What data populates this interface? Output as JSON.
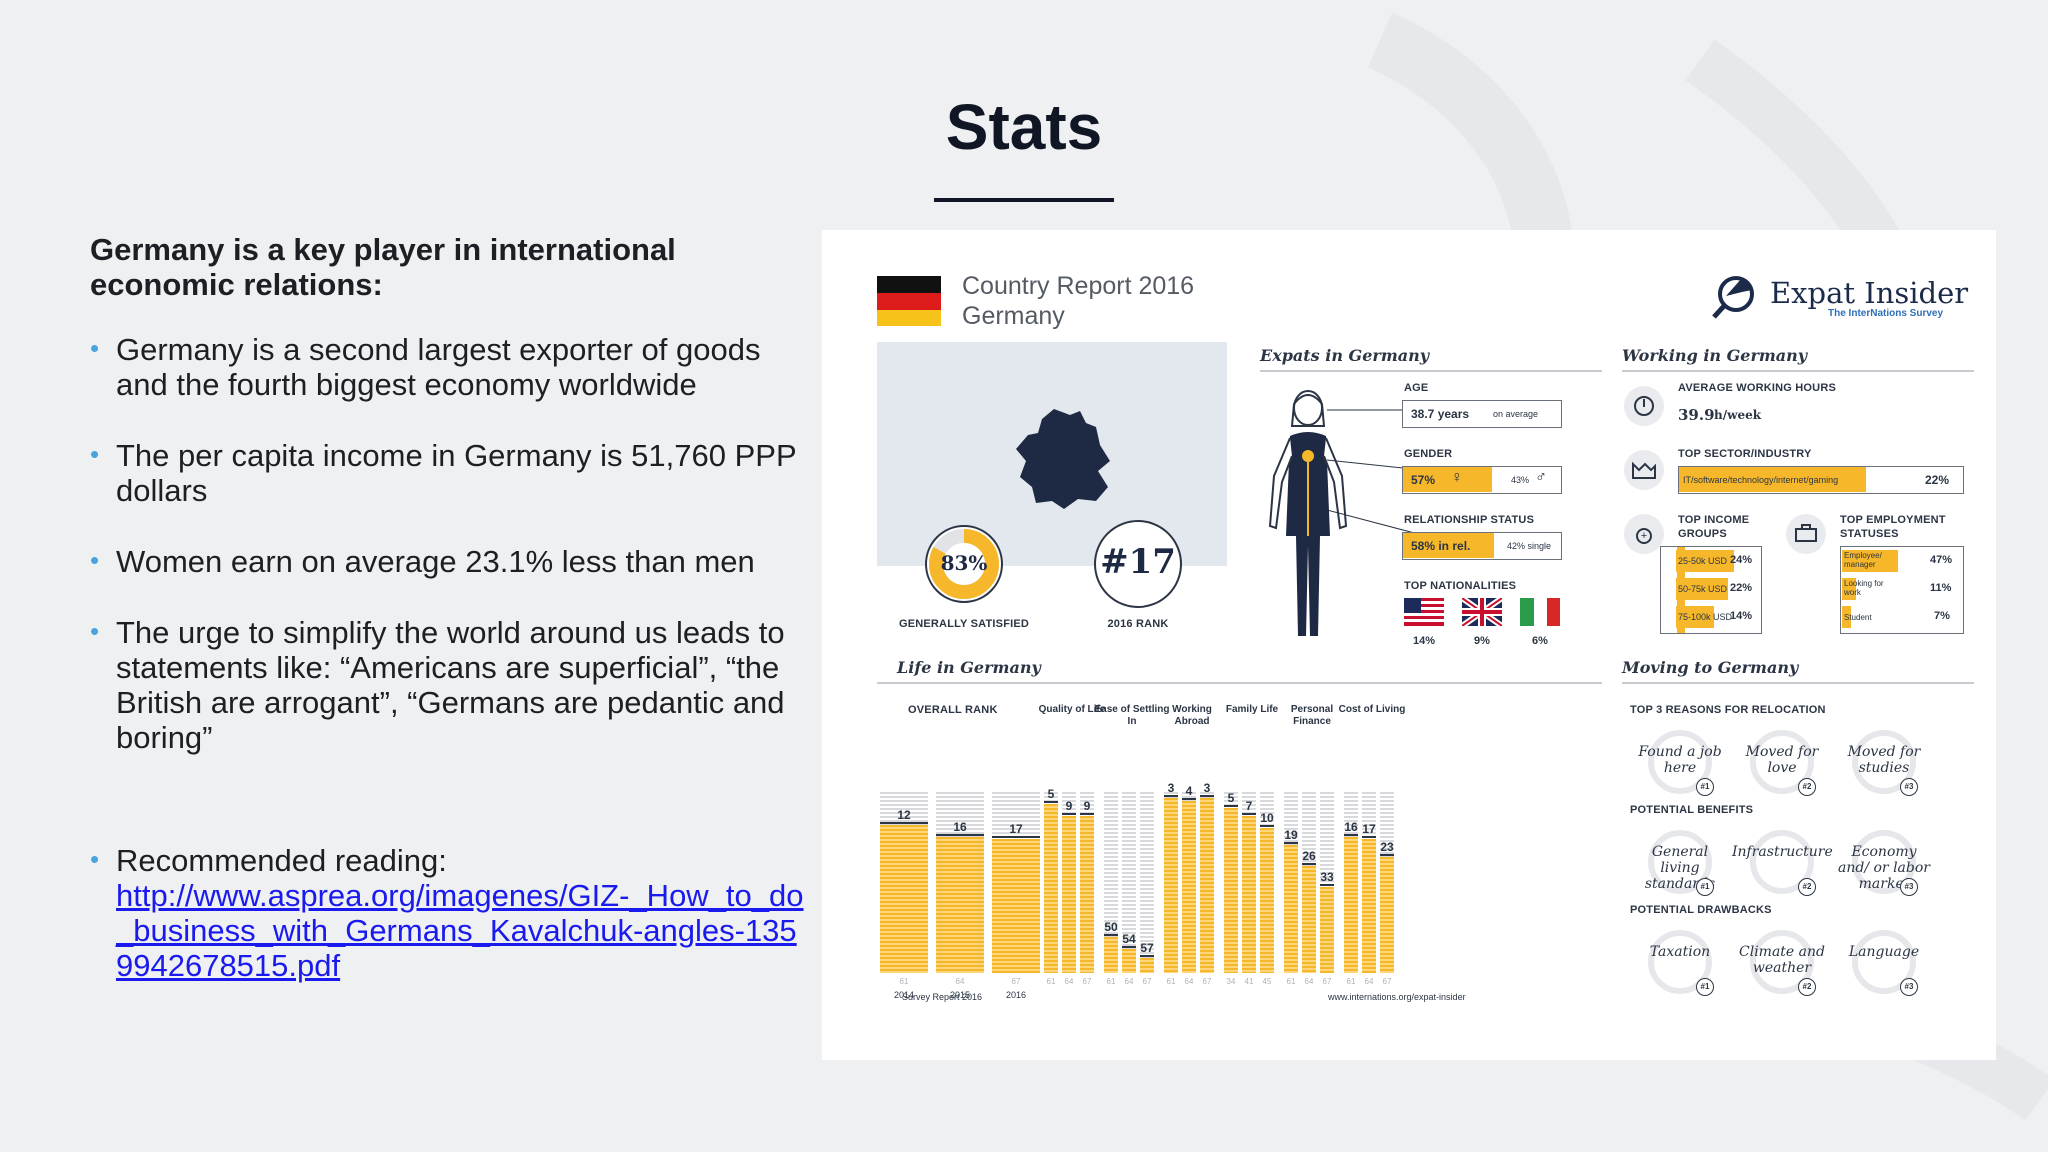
{
  "slide": {
    "title": "Stats",
    "lead": "Germany is a key player in international economic relations:",
    "bullets": [
      "Germany is a second largest exporter of goods and the fourth biggest economy worldwide",
      "The per capita income in Germany is 51,760 PPP dollars",
      "Women earn on average 23.1% less than men",
      "The urge to simplify the world around us leads to statements like: “Americans are superficial”, “the British are arrogant”, “Germans are pedantic and boring”"
    ],
    "recommended_label": "Recommended reading:",
    "recommended_link": "http://www.asprea.org/imagenes/GIZ-_How_to_do_business_with_Germans_Kavalchuk-angles-1359942678515.pdf"
  },
  "infographic": {
    "report_line1": "Country Report 2016",
    "report_line2": "Germany",
    "brand": "Expat Insider",
    "brand_sub": "The InterNations Survey",
    "satisfied_value": "83%",
    "satisfied_fraction": 0.83,
    "satisfied_label": "GENERALLY SATISFIED",
    "rank_value": "#17",
    "rank_label": "2016 RANK",
    "expats": {
      "title": "Expats in Germany",
      "age_label": "AGE",
      "age_value": "38.7 years",
      "age_suffix": "on average",
      "gender_label": "GENDER",
      "female_pct": "57%",
      "male_pct": "43%",
      "female_fraction": 0.57,
      "rel_label": "RELATIONSHIP STATUS",
      "rel_value": "58% in rel.",
      "single_value": "42% single",
      "rel_fraction": 0.58,
      "nat_label": "TOP NATIONALITIES",
      "nat_pcts": [
        "14%",
        "9%",
        "6%"
      ]
    },
    "working": {
      "title": "Working in Germany",
      "hours_label": "AVERAGE WORKING HOURS",
      "hours_value": "39.9",
      "hours_unit": "h/week",
      "sector_label": "TOP SECTOR/INDUSTRY",
      "sector_name": "IT/software/technology/internet/gaming",
      "sector_pct": "22%",
      "sector_fraction": 0.22,
      "income_label_1": "TOP INCOME",
      "income_label_2": "GROUPS",
      "income": [
        {
          "name": "25-50k USD",
          "pct": "24%"
        },
        {
          "name": "50-75k USD",
          "pct": "22%"
        },
        {
          "name": "75-100k USD",
          "pct": "14%"
        }
      ],
      "emp_label_1": "TOP EMPLOYMENT",
      "emp_label_2": "STATUSES",
      "employment": [
        {
          "name": "Employee/ manager",
          "pct": "47%"
        },
        {
          "name": "Looking for work",
          "pct": "11%"
        },
        {
          "name": "Student",
          "pct": "7%"
        }
      ]
    },
    "life": {
      "title": "Life in Germany",
      "overall_label": "OVERALL RANK",
      "years": [
        "2014",
        "2015",
        "2016"
      ],
      "overall_ranks": [
        "12",
        "16",
        "17"
      ],
      "overall_max": "61",
      "overall_max_labels": [
        "61",
        "64",
        "67"
      ],
      "categories": [
        {
          "name": "Quality of Life",
          "ranks": [
            "5",
            "9",
            "9"
          ]
        },
        {
          "name": "Ease of Settling In",
          "ranks": [
            "50",
            "54",
            "57"
          ]
        },
        {
          "name": "Working Abroad",
          "ranks": [
            "3",
            "4",
            "3"
          ]
        },
        {
          "name": "Family Life",
          "ranks": [
            "5",
            "7",
            "10"
          ]
        },
        {
          "name": "Personal Finance",
          "ranks": [
            "19",
            "26",
            "33"
          ]
        },
        {
          "name": "Cost of Living",
          "ranks": [
            "16",
            "17",
            "23"
          ]
        }
      ],
      "family_max_labels": [
        "34",
        "41",
        "45"
      ],
      "footer_left": "Survey Report 2016",
      "footer_right": "www.internations.org/expat-insider"
    },
    "moving": {
      "title": "Moving to Germany",
      "reasons_label": "TOP 3 REASONS FOR RELOCATION",
      "reasons": [
        "Found a job here",
        "Moved for love",
        "Moved for studies"
      ],
      "benefits_label": "POTENTIAL BENEFITS",
      "benefits": [
        "General living standards",
        "Infrastructure",
        "Economy and/ or labor market"
      ],
      "drawbacks_label": "POTENTIAL DRAWBACKS",
      "drawbacks": [
        "Taxation",
        "Climate and weather",
        "Language"
      ],
      "badges": [
        "#1",
        "#2",
        "#3"
      ]
    }
  }
}
